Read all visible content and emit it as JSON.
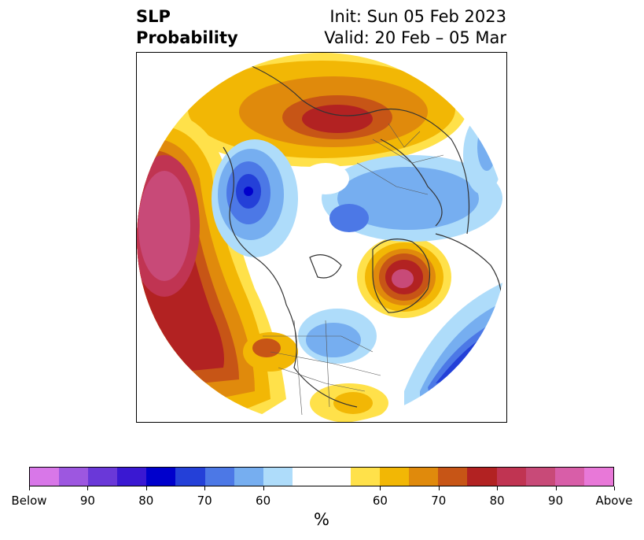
{
  "title": {
    "variable": "SLP",
    "product": "Probability",
    "init": "Init: Sun 05 Feb 2023",
    "valid": "Valid: 20 Feb – 05 Mar"
  },
  "colorbar": {
    "unit": "%",
    "tick_labels": [
      "Below",
      "90",
      "80",
      "70",
      "60",
      "60",
      "70",
      "80",
      "90",
      "Above"
    ],
    "segment_colors": [
      "#d877e8",
      "#9d57e0",
      "#6a38d8",
      "#3a18d2",
      "#0000cc",
      "#2440d8",
      "#4c78e6",
      "#76aef0",
      "#aedcfa",
      "#ffffff",
      "#ffffff",
      "#ffe14a",
      "#f2b705",
      "#e08a0c",
      "#c75516",
      "#b22222",
      "#c03452",
      "#c84a78",
      "#d85ea8",
      "#e878d8"
    ]
  },
  "map": {
    "projection": "north polar stereographic",
    "description_colors": {
      "above": "#b22222",
      "below": "#2440d8"
    }
  }
}
